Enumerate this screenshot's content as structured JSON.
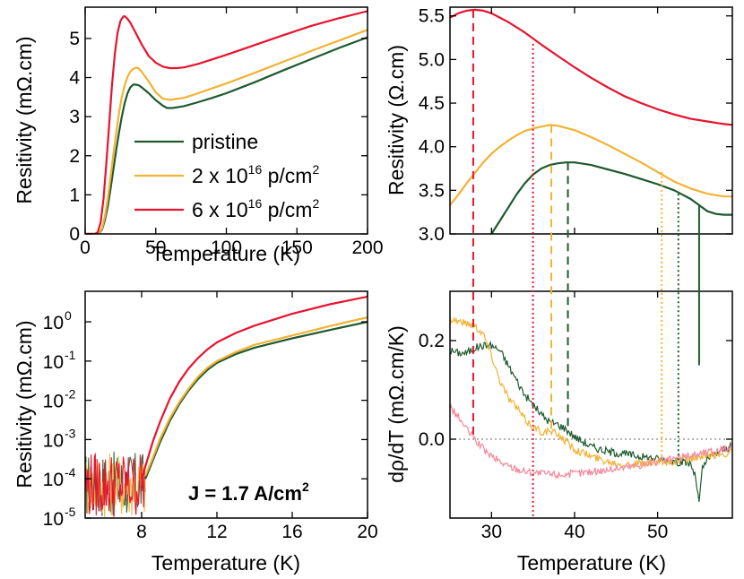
{
  "colors": {
    "pristine": "#1e5a2e",
    "dose2": "#f2b233",
    "dose6": "#e8132e",
    "dose6_light": "#f5879a",
    "axis": "#000000",
    "zero_line": "#888888"
  },
  "legend": {
    "items": [
      {
        "key": "pristine",
        "label": "pristine",
        "sup": "",
        "tail": ""
      },
      {
        "key": "dose2",
        "label": "2 x 10",
        "sup": "16",
        "tail": " p/cm",
        "sup2": "2"
      },
      {
        "key": "dose6",
        "label": "6 x 10",
        "sup": "16",
        "tail": " p/cm",
        "sup2": "2"
      }
    ],
    "placement": "center-right"
  },
  "annotation": {
    "text": "J = 1.7 A/cm",
    "sup": "2"
  },
  "chart_data": [
    {
      "id": "top-left",
      "type": "line",
      "xlabel": "Temperature (K)",
      "ylabel": "Resitivity (mΩ.cm)",
      "xlim": [
        0,
        200
      ],
      "ylim": [
        0,
        5.8
      ],
      "xticks": [
        0,
        50,
        100,
        150,
        200
      ],
      "yticks": [
        0,
        1,
        2,
        3,
        4,
        5
      ],
      "grid": false,
      "series": [
        {
          "name": "pristine",
          "color_key": "pristine",
          "x": [
            0,
            8,
            10,
            12,
            14,
            16,
            18,
            20,
            22,
            24,
            26,
            28,
            30,
            32,
            34,
            36,
            38,
            40,
            45,
            50,
            55,
            58,
            62,
            70,
            80,
            90,
            100,
            120,
            140,
            160,
            180,
            200
          ],
          "y": [
            0,
            0,
            0.02,
            0.12,
            0.35,
            0.7,
            1.15,
            1.65,
            2.15,
            2.6,
            3.0,
            3.35,
            3.6,
            3.75,
            3.82,
            3.82,
            3.8,
            3.75,
            3.6,
            3.42,
            3.28,
            3.22,
            3.22,
            3.27,
            3.37,
            3.48,
            3.6,
            3.88,
            4.18,
            4.47,
            4.76,
            5.03
          ]
        },
        {
          "name": "2 x 10^16 p/cm^2",
          "color_key": "dose2",
          "x": [
            0,
            8,
            10,
            12,
            14,
            16,
            18,
            20,
            22,
            24,
            26,
            28,
            30,
            32,
            34,
            36,
            37,
            38,
            40,
            45,
            50,
            55,
            60,
            70,
            80,
            100,
            120,
            140,
            160,
            180,
            200
          ],
          "y": [
            0,
            0,
            0.03,
            0.15,
            0.45,
            0.9,
            1.45,
            2.05,
            2.6,
            3.1,
            3.5,
            3.8,
            4.02,
            4.15,
            4.22,
            4.25,
            4.25,
            4.23,
            4.15,
            3.9,
            3.62,
            3.46,
            3.43,
            3.48,
            3.6,
            3.85,
            4.12,
            4.4,
            4.68,
            4.95,
            5.22
          ]
        },
        {
          "name": "6 x 10^16 p/cm^2",
          "color_key": "dose6",
          "x": [
            0,
            7,
            9,
            11,
            13,
            15,
            17,
            19,
            21,
            23,
            25,
            27,
            28,
            30,
            32,
            35,
            40,
            45,
            50,
            55,
            60,
            65,
            70,
            80,
            100,
            120,
            140,
            160,
            180,
            200
          ],
          "y": [
            0,
            0,
            0.05,
            0.3,
            0.9,
            1.8,
            2.8,
            3.8,
            4.6,
            5.15,
            5.45,
            5.56,
            5.57,
            5.5,
            5.4,
            5.2,
            4.85,
            4.55,
            4.38,
            4.28,
            4.24,
            4.24,
            4.26,
            4.35,
            4.58,
            4.83,
            5.08,
            5.32,
            5.52,
            5.7
          ]
        }
      ]
    },
    {
      "id": "top-right",
      "type": "line",
      "xlabel": "",
      "ylabel": "Resitivity (Ω.cm)",
      "xlim": [
        25,
        59
      ],
      "ylim": [
        3.0,
        5.6
      ],
      "yticks": [
        3.0,
        3.5,
        4.0,
        4.5,
        5.0,
        5.5
      ],
      "grid": false,
      "series": [
        {
          "name": "pristine",
          "color_key": "pristine",
          "x": [
            30,
            31,
            32,
            33,
            34,
            35,
            36,
            37,
            38,
            39,
            40,
            42,
            44,
            46,
            48,
            50,
            52,
            53,
            54,
            55,
            56,
            57,
            58,
            59
          ],
          "y": [
            3.0,
            3.15,
            3.3,
            3.45,
            3.58,
            3.68,
            3.75,
            3.79,
            3.81,
            3.82,
            3.82,
            3.79,
            3.74,
            3.69,
            3.63,
            3.57,
            3.5,
            3.45,
            3.4,
            3.33,
            3.26,
            3.23,
            3.22,
            3.22
          ]
        },
        {
          "name": "2 x 10^16 p/cm^2",
          "color_key": "dose2",
          "x": [
            25,
            26,
            27,
            28,
            29,
            30,
            31,
            32,
            33,
            34,
            35,
            36,
            37,
            38,
            40,
            42,
            44,
            46,
            48,
            50,
            52,
            54,
            56,
            58,
            59
          ],
          "y": [
            3.33,
            3.45,
            3.58,
            3.7,
            3.82,
            3.92,
            4.0,
            4.07,
            4.13,
            4.18,
            4.21,
            4.23,
            4.25,
            4.24,
            4.19,
            4.11,
            4.02,
            3.92,
            3.82,
            3.71,
            3.6,
            3.52,
            3.46,
            3.43,
            3.43
          ]
        },
        {
          "name": "6 x 10^16 p/cm^2",
          "color_key": "dose6",
          "x": [
            25,
            26,
            27,
            28,
            29,
            30,
            32,
            34,
            36,
            38,
            40,
            42,
            44,
            46,
            48,
            50,
            52,
            54,
            56,
            58,
            59
          ],
          "y": [
            5.48,
            5.53,
            5.56,
            5.57,
            5.56,
            5.53,
            5.43,
            5.31,
            5.17,
            5.04,
            4.91,
            4.79,
            4.68,
            4.58,
            4.5,
            4.43,
            4.37,
            4.32,
            4.29,
            4.26,
            4.25
          ]
        }
      ]
    },
    {
      "id": "bottom-left",
      "type": "line",
      "xlabel": "Temperature (K)",
      "ylabel": "Resitivity (mΩ.cm)",
      "xlim": [
        5,
        20
      ],
      "ylim": [
        1e-05,
        6
      ],
      "yscale": "log",
      "xticks": [
        8,
        12,
        16,
        20
      ],
      "yticks": [
        "10^-5",
        "10^-4",
        "10^-3",
        "10^-2",
        "10^-1",
        "10^0"
      ],
      "grid": false,
      "series": [
        {
          "name": "pristine",
          "color_key": "pristine",
          "x": [
            8.2,
            8.6,
            9.0,
            9.5,
            10.0,
            10.5,
            11.0,
            11.5,
            12.0,
            13.0,
            14.0,
            16.0,
            18.0,
            20.0
          ],
          "y": [
            0.0001,
            0.0003,
            0.0009,
            0.003,
            0.008,
            0.018,
            0.035,
            0.06,
            0.09,
            0.15,
            0.22,
            0.38,
            0.62,
            1.0
          ]
        },
        {
          "name": "2 x 10^16 p/cm^2",
          "color_key": "dose2",
          "x": [
            8.2,
            8.6,
            9.0,
            9.5,
            10.0,
            10.5,
            11.0,
            11.5,
            12.0,
            13.0,
            14.0,
            16.0,
            18.0,
            20.0
          ],
          "y": [
            0.00012,
            0.00035,
            0.0011,
            0.0035,
            0.009,
            0.02,
            0.04,
            0.068,
            0.1,
            0.17,
            0.26,
            0.45,
            0.78,
            1.3
          ]
        },
        {
          "name": "6 x 10^16 p/cm^2",
          "color_key": "dose6",
          "x": [
            8.0,
            8.3,
            8.6,
            9.0,
            9.5,
            10.0,
            10.5,
            11.0,
            11.5,
            12.0,
            13.0,
            14.0,
            16.0,
            18.0,
            20.0
          ],
          "y": [
            0.0001,
            0.0003,
            0.0009,
            0.003,
            0.011,
            0.03,
            0.065,
            0.12,
            0.2,
            0.3,
            0.52,
            0.8,
            1.6,
            2.8,
            4.4
          ]
        }
      ],
      "noise_floor": {
        "xlim": [
          5,
          8.2
        ],
        "ylim": [
          1e-05,
          0.0005
        ]
      }
    },
    {
      "id": "bottom-right",
      "type": "line",
      "xlabel": "Temperature (K)",
      "ylabel": "dρ/dT (mΩ.cm/K)",
      "xlim": [
        25,
        59
      ],
      "ylim": [
        -0.16,
        0.3
      ],
      "xticks": [
        30,
        40,
        50
      ],
      "yticks": [
        0.0,
        0.2
      ],
      "ytick_labels": [
        "0.0",
        "0.2"
      ],
      "grid": false,
      "zero_line": true,
      "series": [
        {
          "name": "pristine",
          "color_key": "pristine",
          "x": [
            25,
            26,
            27,
            28,
            29,
            30,
            31,
            32,
            33,
            34,
            35,
            36,
            37,
            38,
            39,
            40,
            41,
            42,
            44,
            46,
            48,
            50,
            52,
            54,
            54.6,
            55.0,
            55.4,
            56,
            57,
            58,
            59
          ],
          "y": [
            0.18,
            0.175,
            0.175,
            0.185,
            0.19,
            0.19,
            0.18,
            0.15,
            0.12,
            0.09,
            0.07,
            0.05,
            0.035,
            0.03,
            0.02,
            0.005,
            -0.005,
            -0.015,
            -0.025,
            -0.03,
            -0.035,
            -0.04,
            -0.045,
            -0.05,
            -0.08,
            -0.13,
            -0.06,
            -0.04,
            -0.03,
            -0.02,
            -0.015
          ]
        },
        {
          "name": "2 x 10^16 p/cm^2",
          "color_key": "dose2",
          "x": [
            25,
            26,
            27,
            28,
            29,
            30,
            31,
            32,
            33,
            34,
            35,
            36,
            37,
            38,
            40,
            42,
            44,
            46,
            48,
            50,
            52,
            54,
            56,
            58,
            59
          ],
          "y": [
            0.245,
            0.24,
            0.235,
            0.23,
            0.215,
            0.17,
            0.12,
            0.085,
            0.065,
            0.04,
            0.025,
            0.015,
            0.015,
            0.01,
            -0.02,
            -0.035,
            -0.045,
            -0.05,
            -0.05,
            -0.048,
            -0.045,
            -0.04,
            -0.035,
            -0.03,
            -0.025
          ]
        },
        {
          "name": "6 x 10^16 p/cm^2",
          "color_key": "dose6_light",
          "x": [
            25,
            26,
            27,
            28,
            29,
            30,
            32,
            34,
            36,
            38,
            40,
            42,
            44,
            46,
            48,
            50,
            52,
            54,
            56,
            58,
            59
          ],
          "y": [
            0.065,
            0.045,
            0.02,
            0.0,
            -0.02,
            -0.035,
            -0.055,
            -0.065,
            -0.07,
            -0.072,
            -0.07,
            -0.066,
            -0.062,
            -0.057,
            -0.052,
            -0.046,
            -0.04,
            -0.033,
            -0.026,
            -0.02,
            -0.017
          ]
        }
      ],
      "markers": [
        {
          "x": 27.8,
          "color_key": "dose6",
          "style": "dashed"
        },
        {
          "x": 35.0,
          "color_key": "dose6",
          "style": "dotted"
        },
        {
          "x": 37.2,
          "color_key": "dose2",
          "style": "dashed"
        },
        {
          "x": 39.2,
          "color_key": "pristine",
          "style": "dashed"
        },
        {
          "x": 50.5,
          "color_key": "dose2",
          "style": "dotted"
        },
        {
          "x": 52.5,
          "color_key": "pristine",
          "style": "dotted"
        },
        {
          "x": 55.0,
          "color_key": "pristine",
          "style": "solid"
        }
      ]
    }
  ]
}
